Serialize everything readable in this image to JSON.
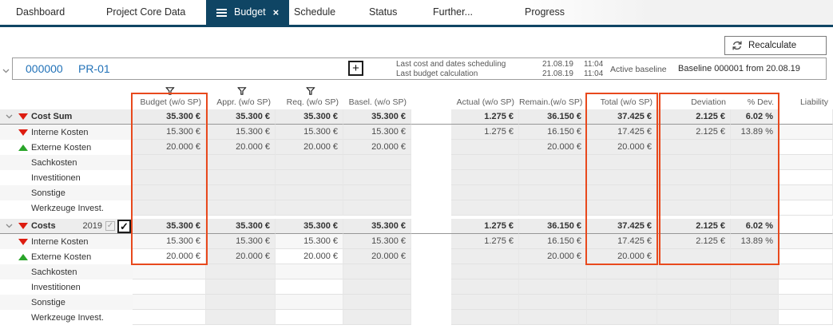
{
  "tabs": {
    "items": [
      {
        "label": "Dashboard",
        "active": false
      },
      {
        "label": "Project Core Data",
        "active": false
      },
      {
        "label": "Budget",
        "active": true
      },
      {
        "label": "Schedule",
        "active": false
      },
      {
        "label": "Status",
        "active": false
      },
      {
        "label": "Further...",
        "active": false
      },
      {
        "label": "Progress",
        "active": false
      }
    ]
  },
  "toolbar": {
    "recalculate_label": "Recalculate"
  },
  "project_bar": {
    "number": "000000",
    "code": "PR-01",
    "add_label": "+",
    "info": [
      {
        "label": "Last cost and dates scheduling",
        "date": "21.08.19",
        "time": "11:04"
      },
      {
        "label": "Last budget calculation",
        "date": "21.08.19",
        "time": "11:04"
      }
    ],
    "active_baseline_label": "Active baseline",
    "baseline_value": "Baseline 000001 from 20.08.19"
  },
  "colors": {
    "accent_navy": "#0f4564",
    "link_blue": "#2272b8",
    "highlight_orange": "#e8491d",
    "negative_red": "#dd1c10",
    "positive_green": "#2aa52a"
  },
  "icons": {
    "menu": "hamburger-icon",
    "close_tab": "x-icon",
    "recalculate": "refresh-icon",
    "collapse": "chevron-down-icon",
    "add": "plus-icon",
    "filter": "funnel-icon",
    "negative": "triangle-down-red",
    "positive": "triangle-up-green"
  },
  "table": {
    "columns": [
      {
        "key": "budget",
        "label": "Budget (w/o SP)",
        "filter": true
      },
      {
        "key": "appr",
        "label": "Appr. (w/o SP)",
        "filter": true
      },
      {
        "key": "req",
        "label": "Req. (w/o SP)",
        "filter": true
      },
      {
        "key": "basel",
        "label": "Basel. (w/o SP)",
        "filter": false
      },
      {
        "key": "gap",
        "label": "",
        "filter": false
      },
      {
        "key": "actual",
        "label": "Actual (w/o SP)",
        "filter": false
      },
      {
        "key": "remain",
        "label": "Remain.(w/o SP)",
        "filter": false
      },
      {
        "key": "total",
        "label": "Total (w/o SP)",
        "filter": false
      },
      {
        "key": "deviation",
        "label": "Deviation",
        "filter": false
      },
      {
        "key": "pdev",
        "label": "% Dev.",
        "filter": false
      },
      {
        "key": "liability",
        "label": "Liability",
        "filter": false
      }
    ],
    "blocks": [
      {
        "editable_columns": [],
        "rows": [
          {
            "label": "Cost Sum",
            "indicator": "negative",
            "sum": true,
            "expander": true,
            "values": {
              "budget": "35.300 €",
              "appr": "35.300 €",
              "req": "35.300 €",
              "basel": "35.300 €",
              "actual": "1.275 €",
              "remain": "36.150 €",
              "total": "37.425 €",
              "deviation": "2.125 €",
              "pdev": "6.02 %",
              "liability": ""
            }
          },
          {
            "label": "Interne Kosten",
            "indicator": "negative",
            "sum": false,
            "values": {
              "budget": "15.300 €",
              "appr": "15.300 €",
              "req": "15.300 €",
              "basel": "15.300 €",
              "actual": "1.275 €",
              "remain": "16.150 €",
              "total": "17.425 €",
              "deviation": "2.125 €",
              "pdev": "13.89 %",
              "liability": ""
            }
          },
          {
            "label": "Externe Kosten",
            "indicator": "positive",
            "sum": false,
            "values": {
              "budget": "20.000 €",
              "appr": "20.000 €",
              "req": "20.000 €",
              "basel": "20.000 €",
              "actual": "",
              "remain": "20.000 €",
              "total": "20.000 €",
              "deviation": "",
              "pdev": "",
              "liability": ""
            }
          },
          {
            "label": "Sachkosten",
            "indicator": null,
            "sum": false,
            "values": {}
          },
          {
            "label": "Investitionen",
            "indicator": null,
            "sum": false,
            "values": {}
          },
          {
            "label": "Sonstige",
            "indicator": null,
            "sum": false,
            "values": {}
          },
          {
            "label": "Werkzeuge Invest.",
            "indicator": null,
            "sum": false,
            "values": {}
          }
        ]
      },
      {
        "editable_columns": [
          "budget",
          "req"
        ],
        "rows": [
          {
            "label": "Costs",
            "indicator": "negative",
            "sum": true,
            "expander": true,
            "year": "2019",
            "checkboxes": [
              {
                "state": "checked",
                "disabled": true
              },
              {
                "state": "checked",
                "disabled": false
              }
            ],
            "values": {
              "budget": "35.300 €",
              "appr": "35.300 €",
              "req": "35.300 €",
              "basel": "35.300 €",
              "actual": "1.275 €",
              "remain": "36.150 €",
              "total": "37.425 €",
              "deviation": "2.125 €",
              "pdev": "6.02 %",
              "liability": ""
            }
          },
          {
            "label": "Interne Kosten",
            "indicator": "negative",
            "sum": false,
            "values": {
              "budget": "15.300 €",
              "appr": "15.300 €",
              "req": "15.300 €",
              "basel": "15.300 €",
              "actual": "1.275 €",
              "remain": "16.150 €",
              "total": "17.425 €",
              "deviation": "2.125 €",
              "pdev": "13.89 %",
              "liability": ""
            }
          },
          {
            "label": "Externe Kosten",
            "indicator": "positive",
            "sum": false,
            "values": {
              "budget": "20.000 €",
              "appr": "20.000 €",
              "req": "20.000 €",
              "basel": "20.000 €",
              "actual": "",
              "remain": "20.000 €",
              "total": "20.000 €",
              "deviation": "",
              "pdev": "",
              "liability": ""
            }
          },
          {
            "label": "Sachkosten",
            "indicator": null,
            "sum": false,
            "values": {}
          },
          {
            "label": "Investitionen",
            "indicator": null,
            "sum": false,
            "values": {}
          },
          {
            "label": "Sonstige",
            "indicator": null,
            "sum": false,
            "values": {}
          },
          {
            "label": "Werkzeuge Invest.",
            "indicator": null,
            "sum": false,
            "values": {}
          }
        ]
      }
    ]
  }
}
